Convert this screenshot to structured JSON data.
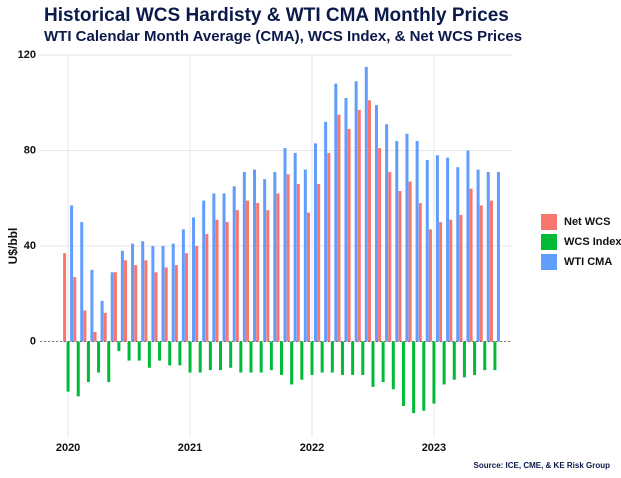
{
  "chart_data": {
    "type": "bar",
    "title": "Historical WCS Hardisty & WTI CMA Monthly Prices",
    "subtitle": "WTI Calendar Month Average (CMA), WCS Index, & Net WCS Prices",
    "y_label": "U$/bbl",
    "source": "Source: ICE, CME, & KE Risk Group",
    "categories": [
      "2020",
      null,
      null,
      null,
      null,
      null,
      null,
      null,
      null,
      null,
      null,
      null,
      "2021",
      null,
      null,
      null,
      null,
      null,
      null,
      null,
      null,
      null,
      null,
      null,
      "2022",
      null,
      null,
      null,
      null,
      null,
      null,
      null,
      null,
      null,
      null,
      null,
      "2023",
      null,
      null,
      null,
      null,
      null,
      null
    ],
    "series": [
      {
        "name": "Net WCS",
        "color": "#f8766d",
        "values": [
          37,
          27,
          13,
          4,
          12,
          29,
          34,
          32,
          34,
          29,
          31,
          32,
          37,
          40,
          45,
          51,
          50,
          55,
          59,
          58,
          55,
          62,
          70,
          66,
          54,
          66,
          79,
          95,
          89,
          97,
          101,
          81,
          71,
          63,
          67,
          58,
          47,
          50,
          51,
          53,
          64,
          57,
          59
        ]
      },
      {
        "name": "WCS Index",
        "color": "#00ba38",
        "values": [
          -21,
          -23,
          -17,
          -13,
          -17,
          -4,
          -8,
          -8,
          -11,
          -8,
          -10,
          -10,
          -13,
          -13,
          -12,
          -12,
          -11,
          -13,
          -13,
          -13,
          -12,
          -14,
          -18,
          -16,
          -14,
          -13,
          -13,
          -14,
          -14,
          -14,
          -19,
          -17,
          -20,
          -27,
          -30,
          -29,
          -26,
          -18,
          -16,
          -15,
          -14,
          -12,
          -12
        ]
      },
      {
        "name": "WTI CMA",
        "color": "#619cff",
        "values": [
          57,
          50,
          30,
          17,
          29,
          38,
          41,
          42,
          40,
          40,
          41,
          47,
          52,
          59,
          62,
          62,
          65,
          71,
          72,
          68,
          71,
          81,
          79,
          72,
          83,
          92,
          108,
          102,
          109,
          115,
          99,
          91,
          84,
          87,
          84,
          76,
          78,
          77,
          73,
          80,
          72,
          71,
          71
        ]
      }
    ],
    "ylim": [
      -40,
      120
    ],
    "yticks": [
      0,
      40,
      80,
      120
    ],
    "grid": true
  }
}
